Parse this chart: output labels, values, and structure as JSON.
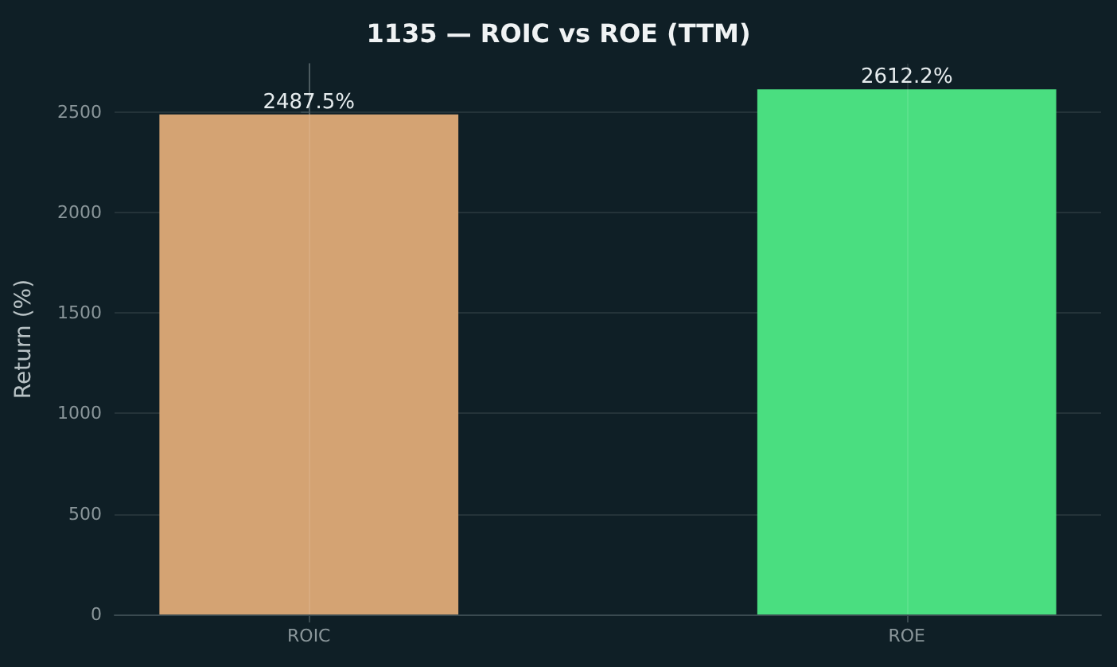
{
  "chart_data": {
    "type": "bar",
    "title": "1135 — ROIC vs ROE (TTM)",
    "ylabel": "Return (%)",
    "categories": [
      "ROIC",
      "ROE"
    ],
    "values": [
      2487.5,
      2612.2
    ],
    "colors": [
      "#d4a373",
      "#4ade80"
    ],
    "value_labels": [
      "2487.5%",
      "2612.2%"
    ],
    "ylim": [
      0,
      2740
    ],
    "yticks": [
      0,
      500,
      1000,
      1500,
      2000,
      2500
    ],
    "grid": true
  }
}
